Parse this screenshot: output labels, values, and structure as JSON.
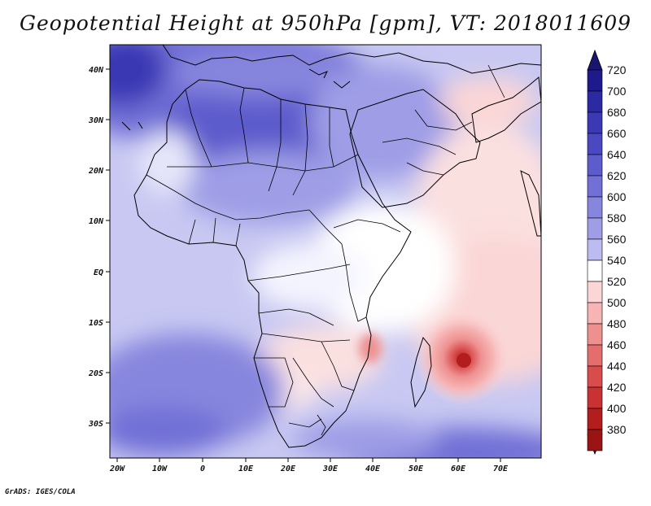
{
  "title": "Geopotential Height at 950hPa [gpm], VT: 2018011609",
  "credit": "GrADS: IGES/COLA",
  "x_ticks": [
    "20W",
    "10W",
    "0",
    "10E",
    "20E",
    "30E",
    "40E",
    "50E",
    "60E",
    "70E"
  ],
  "y_ticks": [
    "40N",
    "30N",
    "20N",
    "10N",
    "EQ",
    "10S",
    "20S",
    "30S"
  ],
  "colorbar": {
    "labels": [
      "720",
      "700",
      "680",
      "660",
      "640",
      "620",
      "600",
      "580",
      "560",
      "540",
      "520",
      "500",
      "480",
      "460",
      "440",
      "420",
      "400",
      "380"
    ],
    "colors": [
      "#1e1a8c",
      "#2c2aa2",
      "#3b39b4",
      "#4b49c2",
      "#5d5ccc",
      "#7170d6",
      "#8786de",
      "#9e9de6",
      "#bcbcf0",
      "#ffffff",
      "#fbd6d6",
      "#f6b4b4",
      "#ee9090",
      "#e46e6e",
      "#d84c4c",
      "#c83232",
      "#b21e1e",
      "#9a1414"
    ],
    "top_arrow_color": "#1a1570",
    "bottom_arrow_color": "#8a1010"
  }
}
